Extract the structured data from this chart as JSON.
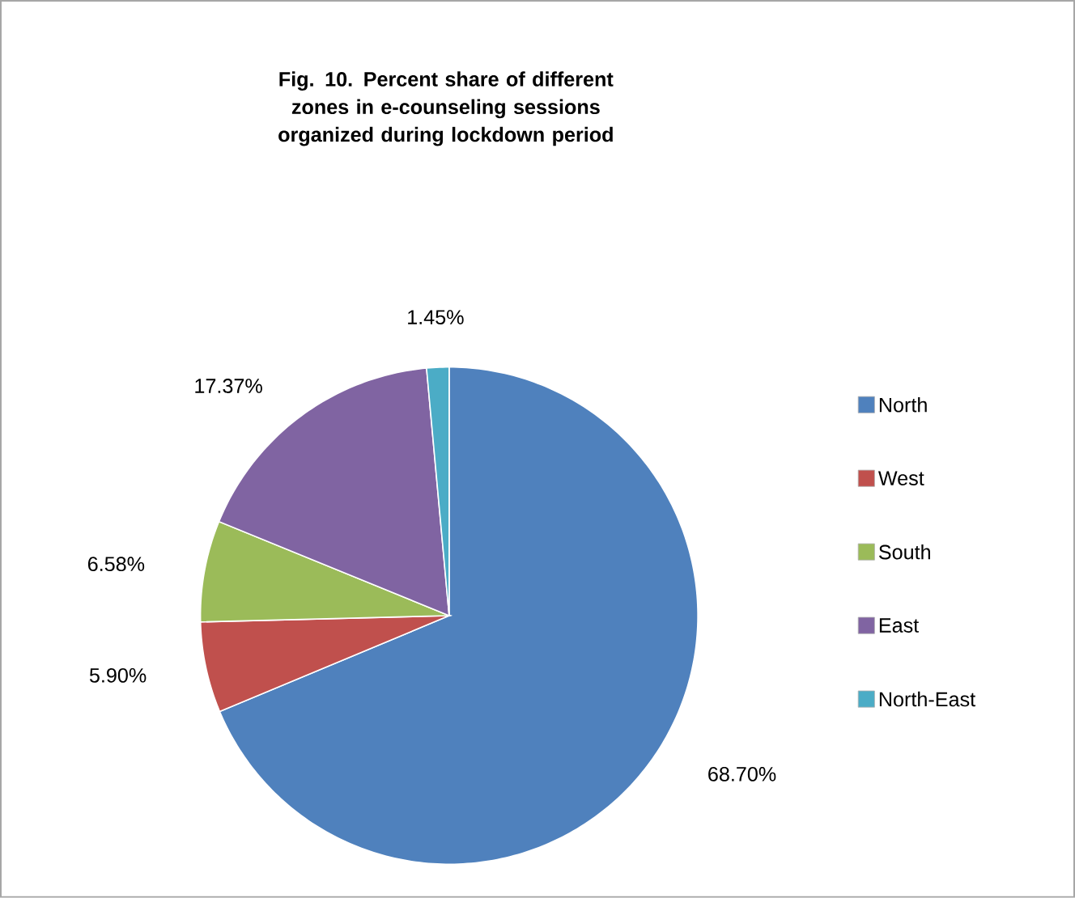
{
  "chart_data": {
    "type": "pie",
    "title": "Fig. 10. Percent share of different zones in e-counseling sessions organized during lockdown period",
    "categories": [
      "North",
      "West",
      "South",
      "East",
      "North-East"
    ],
    "values": [
      68.7,
      5.9,
      6.58,
      17.37,
      1.45
    ],
    "colors": [
      "#4f81bd",
      "#c0504d",
      "#9bbb59",
      "#8064a2",
      "#4bacc6"
    ],
    "value_labels": [
      "68.70%",
      "5.90%",
      "6.58%",
      "17.37%",
      "1.45%"
    ],
    "legend": "right"
  }
}
